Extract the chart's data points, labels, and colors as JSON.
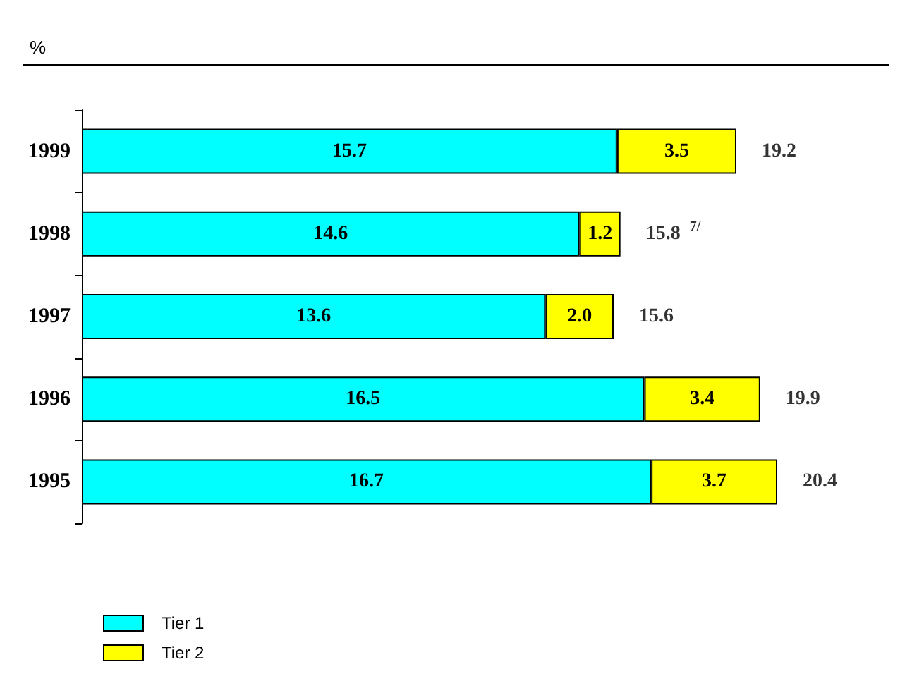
{
  "chart_data": {
    "type": "bar",
    "orientation": "horizontal",
    "stacked": true,
    "title": "%",
    "categories": [
      "1999",
      "1998",
      "1997",
      "1996",
      "1995"
    ],
    "series": [
      {
        "name": "Tier 1",
        "color": "#00ffff",
        "values": [
          15.7,
          14.6,
          13.6,
          16.5,
          16.7
        ]
      },
      {
        "name": "Tier 2",
        "color": "#ffff00",
        "values": [
          3.5,
          1.2,
          2.0,
          3.4,
          3.7
        ],
        "value_labels": [
          "3.5",
          "1.2",
          "2.0",
          "3.4",
          "3.7"
        ]
      }
    ],
    "totals": [
      "19.2",
      "15.8 $^{7/}$",
      "15.6",
      "19.9",
      "20.4"
    ],
    "data_labels": true,
    "tick_labels": "y",
    "legend": "bottom left"
  }
}
